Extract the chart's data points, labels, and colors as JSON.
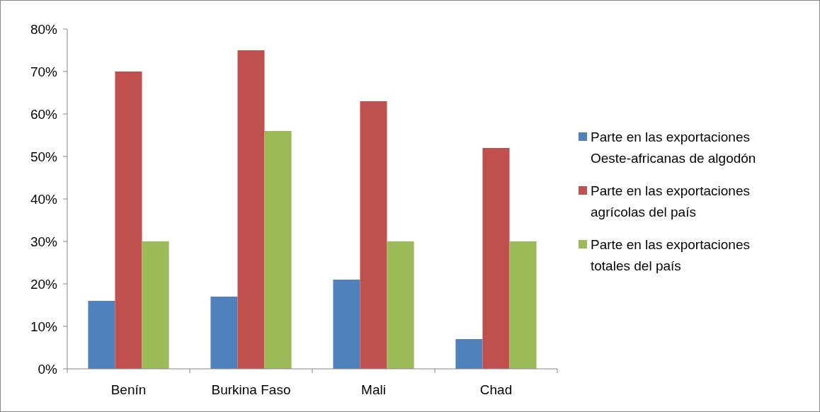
{
  "chart_data": {
    "type": "bar",
    "categories": [
      "Benín",
      "Burkina Faso",
      "Mali",
      "Chad"
    ],
    "series": [
      {
        "name": "Parte en las exportaciones Oeste-africanas de algodón",
        "color": "#4f81bd",
        "values": [
          16,
          17,
          21,
          7
        ]
      },
      {
        "name": "Parte en las exportaciones agrícolas del país",
        "color": "#c0504d",
        "values": [
          70,
          75,
          63,
          52
        ]
      },
      {
        "name": "Parte en las exportaciones totales del país",
        "color": "#9bbb59",
        "values": [
          30,
          56,
          30,
          30
        ]
      }
    ],
    "ylim": [
      0,
      80
    ],
    "yticks": [
      {
        "value": 0,
        "label": "0%"
      },
      {
        "value": 10,
        "label": "10%"
      },
      {
        "value": 20,
        "label": "20%"
      },
      {
        "value": 30,
        "label": "30%"
      },
      {
        "value": 40,
        "label": "40%"
      },
      {
        "value": 50,
        "label": "50%"
      },
      {
        "value": 60,
        "label": "60%"
      },
      {
        "value": 70,
        "label": "70%"
      },
      {
        "value": 80,
        "label": "80%"
      }
    ],
    "grid": false,
    "legend": "right"
  }
}
